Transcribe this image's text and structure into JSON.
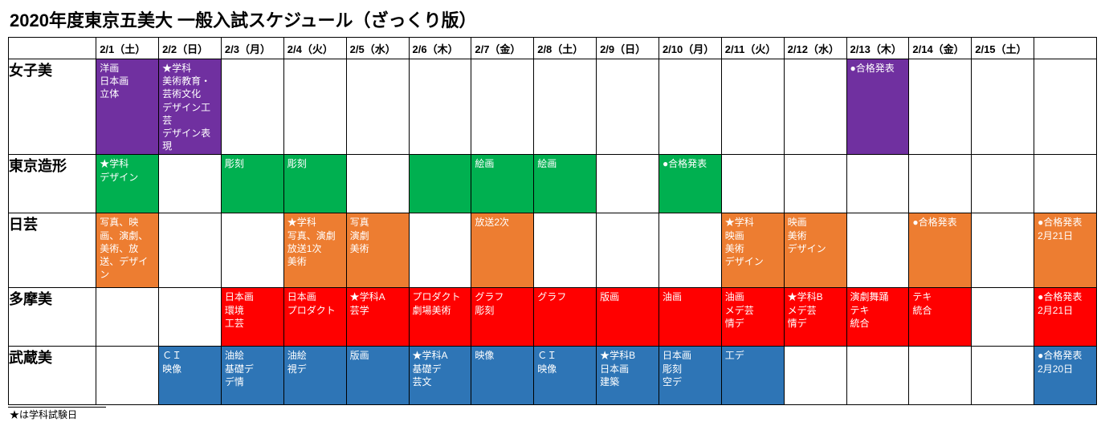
{
  "title": "2020年度東京五美大 一般入試スケジュール（ざっくり版）",
  "footnote": "★は学科試験日",
  "text_color": "#ffffff",
  "colors": {
    "joshibi": "#7030a0",
    "zokei": "#00b050",
    "nichigei": "#ed7d31",
    "tamabi": "#ff0000",
    "musabi": "#2e75b6",
    "bg": "#ffffff",
    "border": "#000000"
  },
  "columns": [
    "2/1（土）",
    "2/2（日）",
    "2/3（月）",
    "2/4（火）",
    "2/5（水）",
    "2/6（木）",
    "2/7（金）",
    "2/8（土）",
    "2/9（日）",
    "2/10（月）",
    "2/11（火）",
    "2/12（水）",
    "2/13（木）",
    "2/14（金）",
    "2/15（土）",
    ""
  ],
  "rows": [
    {
      "name": "女子美",
      "color_key": "joshibi",
      "cells": [
        {
          "lines": [
            "洋画",
            "日本画",
            "立体"
          ]
        },
        {
          "lines": [
            "★学科",
            "美術教育・芸術文化",
            "デザイン工芸",
            "デザイン表現"
          ]
        },
        null,
        null,
        null,
        null,
        null,
        null,
        null,
        null,
        null,
        null,
        {
          "lines": [
            "●合格発表"
          ]
        },
        null,
        null,
        null
      ]
    },
    {
      "name": "東京造形",
      "color_key": "zokei",
      "cells": [
        {
          "lines": [
            "★学科",
            "デザイン"
          ]
        },
        null,
        {
          "lines": [
            "彫刻"
          ]
        },
        {
          "lines": [
            "彫刻"
          ]
        },
        null,
        {
          "lines": [
            ""
          ]
        },
        {
          "lines": [
            "絵画"
          ]
        },
        {
          "lines": [
            "絵画"
          ]
        },
        null,
        {
          "lines": [
            "●合格発表"
          ]
        },
        null,
        null,
        null,
        null,
        null,
        null
      ]
    },
    {
      "name": "日芸",
      "color_key": "nichigei",
      "cells": [
        {
          "lines": [
            "写真、映画、演劇、美術、放送、デザイン"
          ]
        },
        null,
        null,
        {
          "lines": [
            "★学科",
            "写真、演劇",
            "放送1次",
            "美術"
          ]
        },
        {
          "lines": [
            "写真",
            "演劇",
            "美術"
          ]
        },
        null,
        {
          "lines": [
            "放送2次"
          ]
        },
        null,
        null,
        null,
        {
          "lines": [
            "★学科",
            "映画",
            "美術",
            "デザイン"
          ]
        },
        {
          "lines": [
            "映画",
            "美術",
            "デザイン"
          ]
        },
        null,
        {
          "lines": [
            "●合格発表"
          ]
        },
        null,
        {
          "lines": [
            "●合格発表",
            "2月21日"
          ]
        }
      ]
    },
    {
      "name": "多摩美",
      "color_key": "tamabi",
      "cells": [
        null,
        null,
        {
          "lines": [
            "日本画",
            "環境",
            "工芸"
          ]
        },
        {
          "lines": [
            "日本画",
            "プロダクト"
          ]
        },
        {
          "lines": [
            "★学科A",
            "芸学"
          ]
        },
        {
          "lines": [
            "プロダクト",
            "劇場美術"
          ]
        },
        {
          "lines": [
            "グラフ",
            "彫刻"
          ]
        },
        {
          "lines": [
            "グラフ"
          ]
        },
        {
          "lines": [
            "版画"
          ]
        },
        {
          "lines": [
            "油画"
          ]
        },
        {
          "lines": [
            "油画",
            "メデ芸",
            "情デ"
          ]
        },
        {
          "lines": [
            "★学科B",
            "メデ芸",
            "情デ"
          ]
        },
        {
          "lines": [
            "演劇舞踊",
            "テキ",
            "統合"
          ]
        },
        {
          "lines": [
            "テキ",
            "統合"
          ]
        },
        null,
        {
          "lines": [
            "●合格発表",
            "2月21日"
          ]
        }
      ]
    },
    {
      "name": "武蔵美",
      "color_key": "musabi",
      "cells": [
        null,
        {
          "lines": [
            "ＣＩ",
            "映像"
          ]
        },
        {
          "lines": [
            "油絵",
            "基礎デ",
            "デ情"
          ]
        },
        {
          "lines": [
            "油絵",
            "視デ"
          ]
        },
        {
          "lines": [
            "版画"
          ]
        },
        {
          "lines": [
            "★学科A",
            "基礎デ",
            "芸文"
          ]
        },
        {
          "lines": [
            "映像"
          ]
        },
        {
          "lines": [
            "ＣＩ",
            "映像"
          ]
        },
        {
          "lines": [
            "★学科B",
            "日本画",
            "建築"
          ]
        },
        {
          "lines": [
            "日本画",
            "彫刻",
            "空デ"
          ]
        },
        {
          "lines": [
            "工デ"
          ]
        },
        null,
        null,
        null,
        null,
        {
          "lines": [
            "●合格発表",
            "2月20日"
          ]
        }
      ]
    }
  ]
}
